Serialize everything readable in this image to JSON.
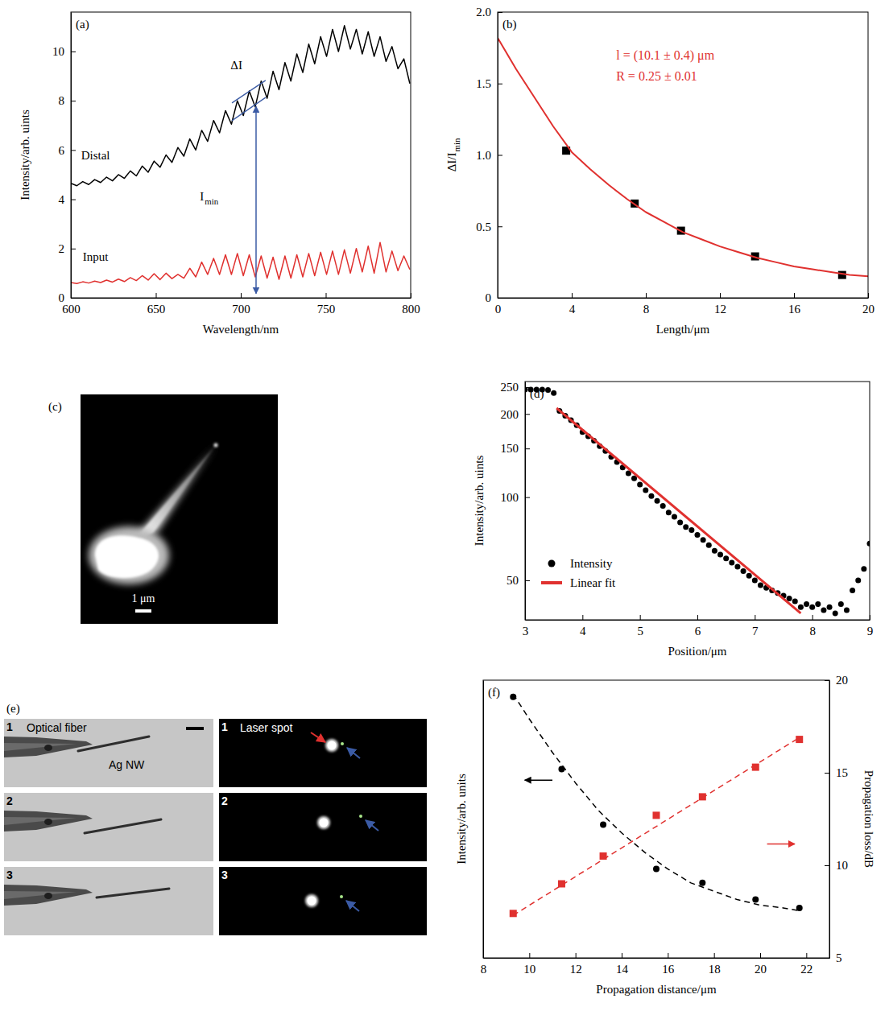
{
  "chart_data": [
    {
      "panel_label": "(a)",
      "type": "line",
      "x": [
        600,
        603.5,
        607,
        610.5,
        614,
        617.5,
        621,
        624.5,
        628,
        631.5,
        635,
        638.5,
        642,
        645.5,
        649,
        652.5,
        656,
        659.5,
        663,
        666.5,
        670,
        673.5,
        677,
        680.5,
        684,
        687.5,
        691,
        694.5,
        698,
        701.5,
        705,
        708.5,
        712,
        715.5,
        719,
        722.5,
        726,
        729.5,
        733,
        736.5,
        740,
        743.5,
        747,
        750.5,
        754,
        757.5,
        761,
        764.5,
        768,
        771.5,
        775,
        778.5,
        782,
        785.5,
        789,
        792.5,
        796,
        799.5
      ],
      "series": [
        {
          "name": "Distal",
          "color": "#000000",
          "values": [
            4.65,
            4.55,
            4.72,
            4.6,
            4.8,
            4.68,
            4.9,
            4.75,
            5.0,
            4.85,
            5.15,
            4.95,
            5.35,
            5.1,
            5.55,
            5.3,
            5.8,
            5.5,
            6.1,
            5.75,
            6.45,
            6.0,
            6.8,
            6.35,
            7.2,
            6.7,
            7.6,
            7.05,
            8.0,
            7.4,
            8.4,
            7.75,
            8.8,
            8.1,
            9.2,
            8.45,
            9.55,
            8.8,
            9.9,
            9.15,
            10.3,
            9.5,
            10.6,
            9.8,
            10.9,
            10.0,
            11.05,
            10.1,
            10.9,
            9.9,
            10.8,
            9.8,
            10.6,
            9.6,
            10.2,
            9.3,
            9.7,
            8.7
          ]
        },
        {
          "name": "Input",
          "color": "#e0312f",
          "values": [
            0.62,
            0.58,
            0.65,
            0.6,
            0.68,
            0.62,
            0.72,
            0.64,
            0.76,
            0.66,
            0.82,
            0.7,
            0.9,
            0.72,
            0.98,
            0.74,
            1.0,
            0.78,
            0.95,
            0.8,
            1.2,
            0.85,
            1.45,
            0.95,
            1.6,
            0.95,
            1.75,
            0.95,
            1.8,
            0.9,
            1.75,
            0.85,
            1.7,
            0.8,
            1.65,
            0.75,
            1.7,
            0.8,
            1.75,
            0.85,
            1.8,
            0.9,
            1.85,
            0.95,
            1.9,
            0.95,
            1.95,
            1.0,
            2.0,
            1.05,
            2.1,
            1.0,
            2.25,
            1.05,
            1.9,
            1.1,
            1.7,
            1.15
          ]
        }
      ],
      "xlabel": "Wavelength/nm",
      "ylabel": "Intensity/arb. uints",
      "xlim": [
        600,
        800
      ],
      "xticks": [
        600,
        650,
        700,
        750,
        800
      ],
      "ylim": [
        0,
        11.6
      ],
      "yticks": [
        0,
        2,
        4,
        6,
        8,
        10
      ],
      "annotations": {
        "delta": "ΔI",
        "min": {
          "text": "I",
          "sub": "min"
        }
      }
    },
    {
      "panel_label": "(b)",
      "type": "scatter",
      "series": [
        {
          "type": "scatter",
          "marker": "square",
          "color": "#000000",
          "x": [
            3.7,
            7.4,
            9.9,
            13.9,
            18.6
          ],
          "values": [
            1.03,
            0.66,
            0.47,
            0.29,
            0.16
          ]
        },
        {
          "type": "line",
          "color": "#e0312f",
          "x": [
            0,
            1,
            2,
            3,
            4,
            5,
            6,
            7,
            8,
            9,
            10,
            11,
            12,
            13,
            14,
            15,
            16,
            17,
            18,
            19,
            20
          ],
          "values": [
            1.82,
            1.6,
            1.4,
            1.2,
            1.02,
            0.9,
            0.79,
            0.69,
            0.6,
            0.53,
            0.46,
            0.41,
            0.36,
            0.32,
            0.28,
            0.25,
            0.22,
            0.2,
            0.18,
            0.16,
            0.15
          ]
        }
      ],
      "xlabel": "Length/μm",
      "ylabel": {
        "text": "ΔI/I",
        "sub": "min"
      },
      "xlim": [
        0,
        20
      ],
      "xticks": [
        0,
        4,
        8,
        12,
        16,
        20
      ],
      "ylim": [
        0,
        2
      ],
      "yticks": [
        0,
        0.5,
        {
          "value": 1,
          "label": "1.0"
        },
        1.5,
        {
          "value": 2,
          "label": "2.0"
        }
      ],
      "annotations": [
        "l = (10.1 ± 0.4) μm",
        "R = 0.25 ± 0.01"
      ]
    },
    {
      "panel_label": "(c)",
      "type": "image",
      "scale_bar": "1 μm"
    },
    {
      "panel_label": "(d)",
      "type": "scatter",
      "log": "y",
      "legend": "lower left",
      "series": [
        {
          "name": "Intensity",
          "type": "scatter",
          "marker": "circle",
          "color": "#000000",
          "x": [
            3,
            3.1,
            3.2,
            3.3,
            3.4,
            3.5,
            3.6,
            3.7,
            3.8,
            3.9,
            4,
            4.1,
            4.2,
            4.3,
            4.4,
            4.5,
            4.6,
            4.7,
            4.8,
            4.9,
            5,
            5.1,
            5.2,
            5.3,
            5.4,
            5.5,
            5.6,
            5.7,
            5.8,
            5.9,
            6,
            6.1,
            6.2,
            6.3,
            6.4,
            6.5,
            6.6,
            6.7,
            6.8,
            6.9,
            7,
            7.1,
            7.2,
            7.3,
            7.4,
            7.5,
            7.6,
            7.7,
            7.8,
            7.9,
            8,
            8.1,
            8.2,
            8.3,
            8.4,
            8.5,
            8.6,
            8.7,
            8.8,
            8.9,
            9
          ],
          "values": [
            245,
            245,
            245,
            245,
            244,
            238,
            205,
            197,
            190,
            182,
            172,
            166,
            160,
            153,
            147,
            140,
            134,
            128,
            122,
            117,
            111,
            106,
            101,
            97,
            93,
            88,
            85,
            81,
            78,
            76,
            73,
            70,
            67,
            64,
            62,
            60,
            58,
            56,
            54,
            52,
            50,
            48,
            47,
            46,
            45,
            44,
            43,
            42,
            40,
            41,
            40,
            41,
            39,
            40,
            38,
            41,
            39,
            46,
            50,
            55,
            68
          ]
        },
        {
          "name": "Linear fit",
          "type": "line",
          "color": "#e0312f",
          "x": [
            3.55,
            7.8
          ],
          "values": [
            210,
            38
          ]
        }
      ],
      "xlabel": "Position/μm",
      "ylabel": "Intensity/arb. uints",
      "xlim": [
        3,
        9
      ],
      "xticks": [
        3,
        4,
        5,
        6,
        7,
        8,
        9
      ],
      "ylim": [
        36,
        262
      ],
      "yticks": [
        50,
        100,
        150,
        200,
        250
      ]
    },
    {
      "panel_label": "(e)",
      "type": "image",
      "frames": [
        "1",
        "2",
        "3"
      ],
      "labels": {
        "fiber": "Optical fiber",
        "wire": "Ag NW",
        "spot": "Laser spot"
      }
    },
    {
      "panel_label": "(f)",
      "type": "scatter",
      "series": [
        {
          "type": "scatter",
          "marker": "circle",
          "color": "#000000",
          "x": [
            9.3,
            11.4,
            13.2,
            15.5,
            17.5,
            19.8,
            21.7
          ],
          "values": [
            0.94,
            0.68,
            0.48,
            0.32,
            0.27,
            0.21,
            0.18
          ]
        },
        {
          "type": "line",
          "line_style": "dashed",
          "color": "#000000",
          "x": [
            9.3,
            10,
            11,
            12,
            13,
            14,
            15,
            16,
            17,
            18,
            19,
            20,
            21,
            21.7
          ],
          "values": [
            0.95,
            0.86,
            0.74,
            0.63,
            0.53,
            0.45,
            0.38,
            0.32,
            0.27,
            0.24,
            0.21,
            0.19,
            0.18,
            0.17
          ]
        },
        {
          "type": "scatter",
          "marker": "square",
          "color": "#e0312f",
          "axis": "y2",
          "x": [
            9.3,
            11.4,
            13.2,
            15.5,
            17.5,
            19.8,
            21.7
          ],
          "values": [
            7.4,
            9.0,
            10.5,
            12.7,
            13.7,
            15.3,
            16.8
          ]
        },
        {
          "type": "line",
          "line_style": "dashed",
          "color": "#e0312f",
          "axis": "y2",
          "x": [
            9.3,
            21.7
          ],
          "values": [
            7.3,
            16.9
          ]
        }
      ],
      "xlabel": "Propagation distance/μm",
      "ylabel": "Intensity/arb. units",
      "y2label": "Propagation loss/dB",
      "xlim": [
        8,
        23
      ],
      "xticks": [
        8,
        10,
        12,
        14,
        16,
        18,
        20,
        22
      ],
      "ylim": [
        0,
        1
      ],
      "y2lim": [
        5,
        20
      ],
      "y2ticks": [
        5,
        10,
        15,
        20
      ]
    }
  ]
}
